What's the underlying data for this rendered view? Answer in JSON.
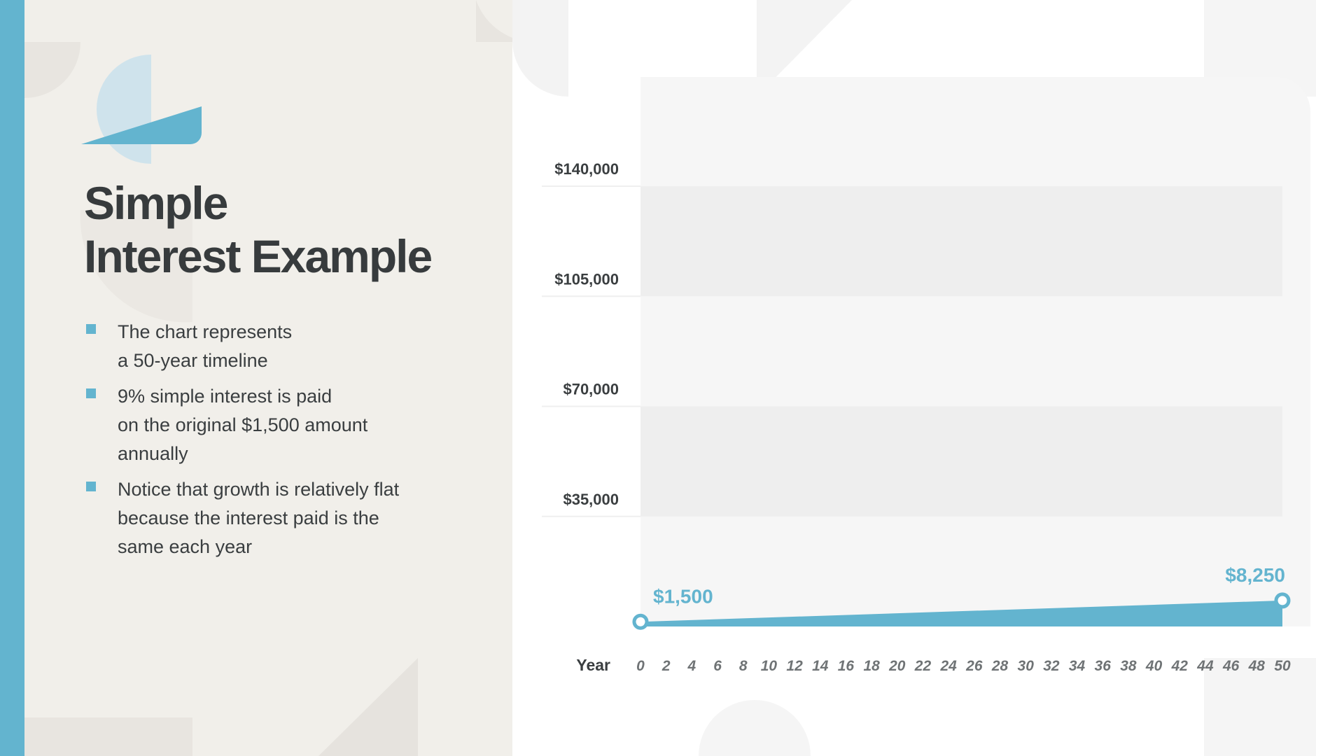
{
  "slide": {
    "title_lines": [
      "Simple",
      "Interest Example"
    ],
    "bullets": [
      [
        "The chart represents",
        "a 50-year timeline"
      ],
      [
        "9% simple interest is paid",
        "on the original $1,500 amount",
        "annually"
      ],
      [
        "Notice that growth is relatively flat",
        "because the interest paid is the",
        "same each year"
      ]
    ],
    "colors": {
      "accent": "#63b4cf",
      "panel": "#f1efea",
      "text": "#373b3d"
    }
  },
  "chart_data": {
    "type": "area",
    "xlabel": "Year",
    "x_ticks": [
      0,
      2,
      4,
      6,
      8,
      10,
      12,
      14,
      16,
      18,
      20,
      22,
      24,
      26,
      28,
      30,
      32,
      34,
      36,
      38,
      40,
      42,
      44,
      46,
      48,
      50
    ],
    "y_tick_labels": [
      "$140,000",
      "$105,000",
      "$70,000",
      "$35,000"
    ],
    "y_ticks": [
      140000,
      105000,
      70000,
      35000
    ],
    "ylim": [
      0,
      140000
    ],
    "xlim": [
      0,
      50
    ],
    "series": [
      {
        "x": [
          0,
          50
        ],
        "y": [
          1500,
          8250
        ],
        "color": "#63b4cf"
      }
    ],
    "data_labels": [
      {
        "x": 0,
        "y": 1500,
        "text": "$1,500"
      },
      {
        "x": 50,
        "y": 8250,
        "text": "$8,250"
      }
    ],
    "grid": "alternating horizontal bands"
  }
}
